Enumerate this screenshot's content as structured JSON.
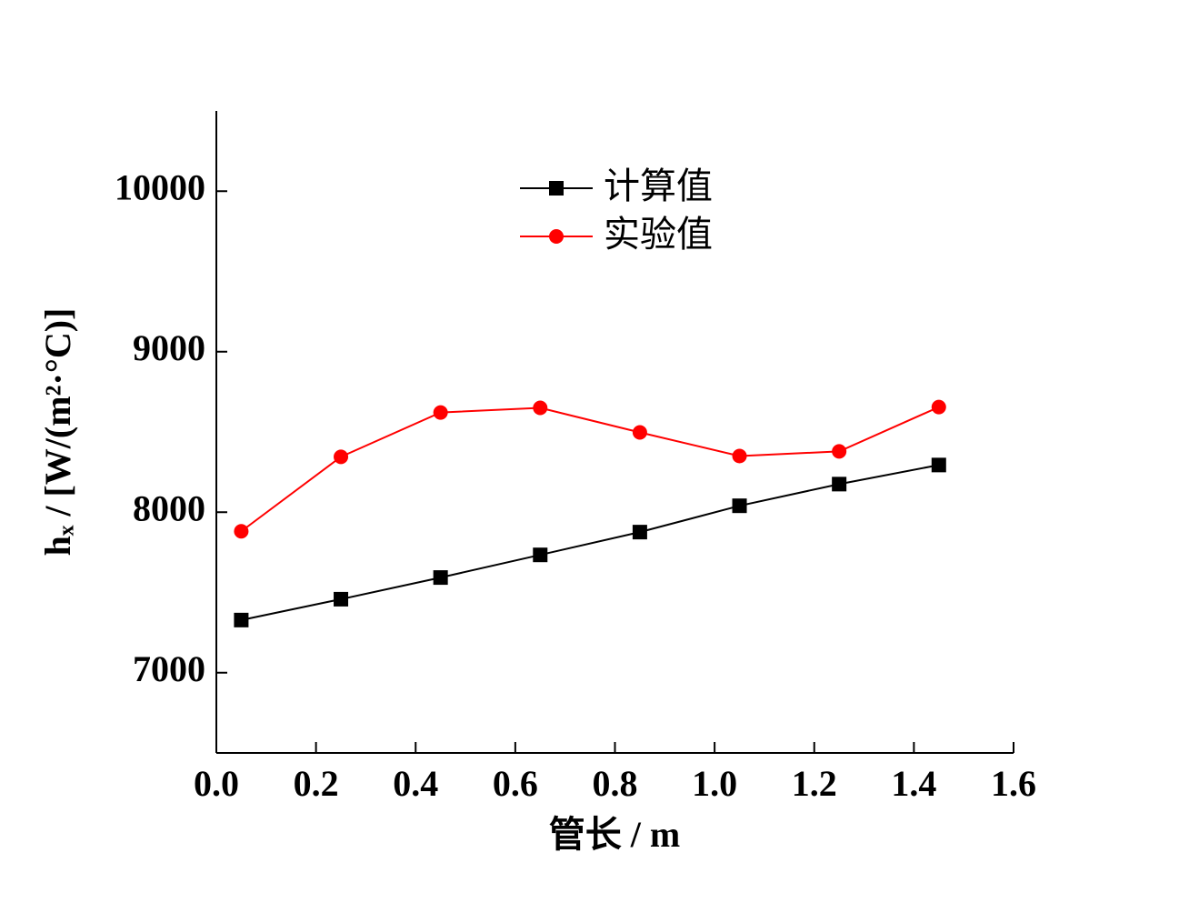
{
  "chart_data": {
    "type": "line",
    "x_label": "管长 / m",
    "y_label": "hₓ / [W/(m²·°C)]",
    "x": [
      0.05,
      0.25,
      0.45,
      0.65,
      0.85,
      1.05,
      1.25,
      1.45
    ],
    "series": [
      {
        "name": "计算值",
        "color": "#000000",
        "marker": "square",
        "values": [
          7328,
          7458,
          7593,
          7734,
          7876,
          8040,
          8175,
          8294
        ]
      },
      {
        "name": "实验值",
        "color": "#ff0000",
        "marker": "circle",
        "values": [
          7881,
          8345,
          8621,
          8650,
          8497,
          8350,
          8379,
          8655
        ]
      }
    ],
    "xlim": [
      0,
      1.6
    ],
    "xticks": [
      {
        "value": 0,
        "label": "0.0"
      },
      0.2,
      0.4,
      0.6,
      0.8,
      {
        "value": 1,
        "label": "1.0"
      },
      1.2,
      1.4,
      1.6
    ],
    "ylim": [
      6500,
      10500
    ],
    "yticks": [
      7000,
      8000,
      9000,
      10000
    ],
    "legend": "top-center"
  }
}
